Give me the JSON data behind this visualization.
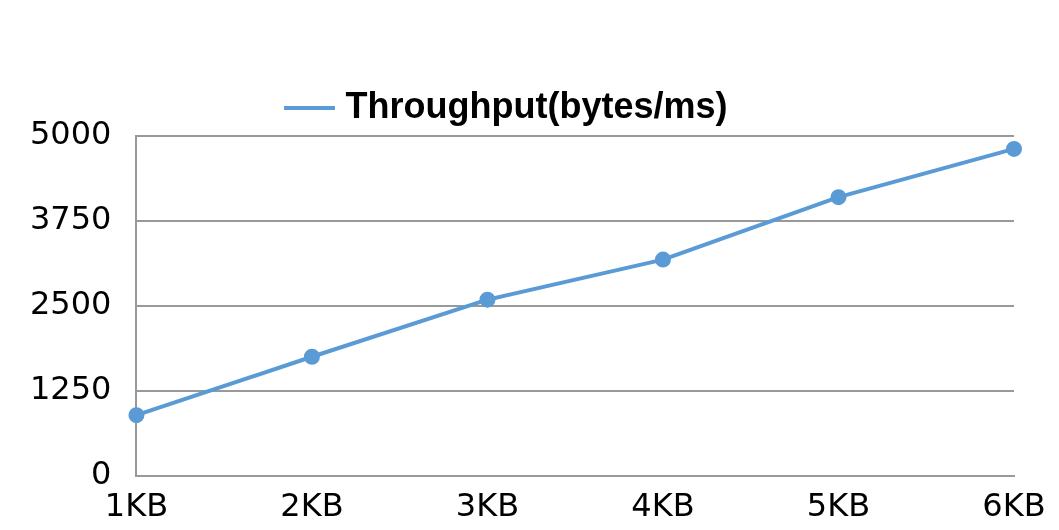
{
  "chart_data": {
    "type": "line",
    "categories": [
      "1KB",
      "2KB",
      "3KB",
      "4KB",
      "5KB",
      "6KB"
    ],
    "series": [
      {
        "name": "Throughput(bytes/ms)",
        "color": "#5b9bd5",
        "values": [
          890,
          1750,
          2590,
          3180,
          4100,
          4810
        ]
      }
    ],
    "ylim": [
      0,
      5000
    ],
    "yticks": [
      0,
      1250,
      2500,
      3750,
      5000
    ],
    "grid": "y",
    "legend": "top",
    "marker": "circle",
    "line_style": "solid"
  }
}
